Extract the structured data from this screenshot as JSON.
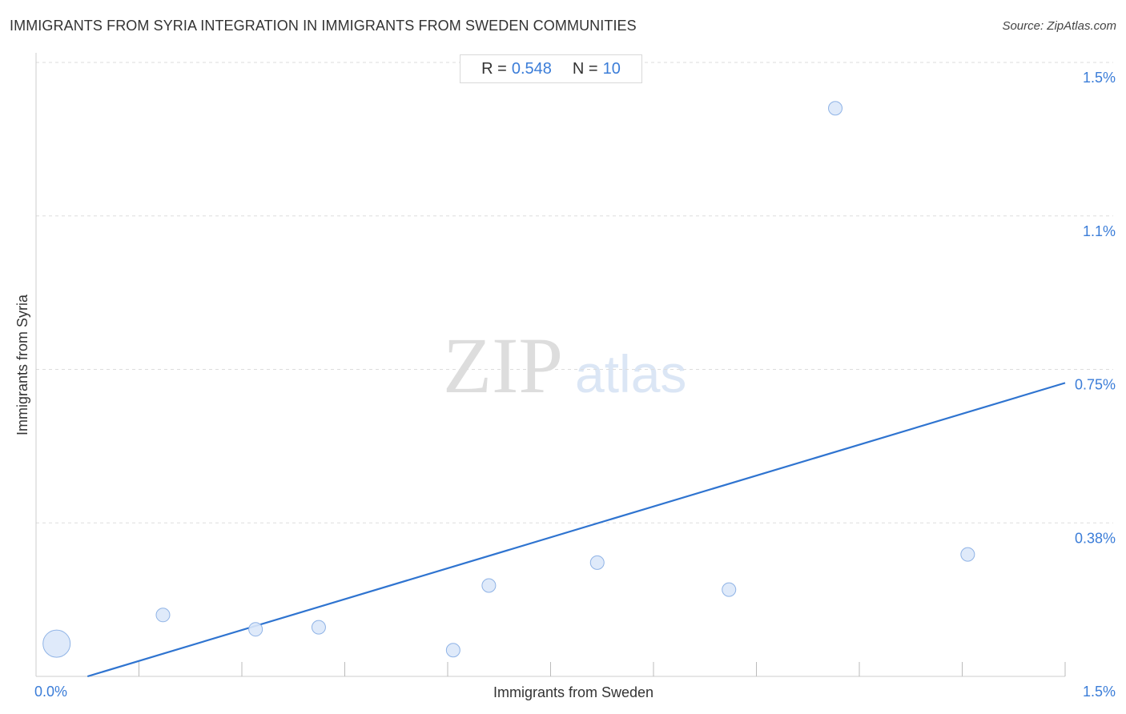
{
  "header": {
    "title": "IMMIGRANTS FROM SYRIA INTEGRATION IN IMMIGRANTS FROM SWEDEN COMMUNITIES",
    "source": "Source: ZipAtlas.com"
  },
  "stats": {
    "r_label": "R =",
    "r_value": "0.548",
    "n_label": "N =",
    "n_value": "10"
  },
  "watermark": {
    "zip": "ZIP",
    "atlas": "atlas"
  },
  "chart_data": {
    "type": "scatter",
    "xlabel": "Immigrants from Sweden",
    "ylabel": "Immigrants from Syria",
    "xlim": [
      0,
      1.5
    ],
    "ylim": [
      0,
      1.5
    ],
    "x_tick_labels": [
      {
        "value": 0,
        "label": "0.0%"
      },
      {
        "value": 1.5,
        "label": "1.5%"
      }
    ],
    "y_tick_labels": [
      {
        "value": 1.5,
        "label": "1.5%"
      },
      {
        "value": 1.125,
        "label": "1.1%"
      },
      {
        "value": 0.75,
        "label": "0.75%"
      },
      {
        "value": 0.375,
        "label": "0.38%"
      }
    ],
    "x_minor_ticks": [
      0.15,
      0.3,
      0.45,
      0.6,
      0.75,
      0.9,
      1.05,
      1.2,
      1.35,
      1.5
    ],
    "grid": "horizontal dashed",
    "points": [
      {
        "x": 0.03,
        "y": 0.08,
        "size": "large"
      },
      {
        "x": 0.185,
        "y": 0.15,
        "size": "normal"
      },
      {
        "x": 0.32,
        "y": 0.115,
        "size": "normal"
      },
      {
        "x": 0.412,
        "y": 0.12,
        "size": "normal"
      },
      {
        "x": 0.608,
        "y": 0.064,
        "size": "normal"
      },
      {
        "x": 0.66,
        "y": 0.222,
        "size": "normal"
      },
      {
        "x": 0.818,
        "y": 0.278,
        "size": "normal"
      },
      {
        "x": 1.01,
        "y": 0.212,
        "size": "normal"
      },
      {
        "x": 1.165,
        "y": 1.388,
        "size": "normal"
      },
      {
        "x": 1.358,
        "y": 0.298,
        "size": "normal"
      }
    ],
    "trendline": {
      "x": [
        0.075,
        1.5
      ],
      "y": [
        0.0,
        0.717
      ]
    },
    "colors": {
      "point_fill": "#dbe8f9",
      "point_stroke": "#8fb3e6",
      "line": "#2f74d0",
      "grid": "#dddddd",
      "axis_label": "#3b7dd8"
    }
  }
}
